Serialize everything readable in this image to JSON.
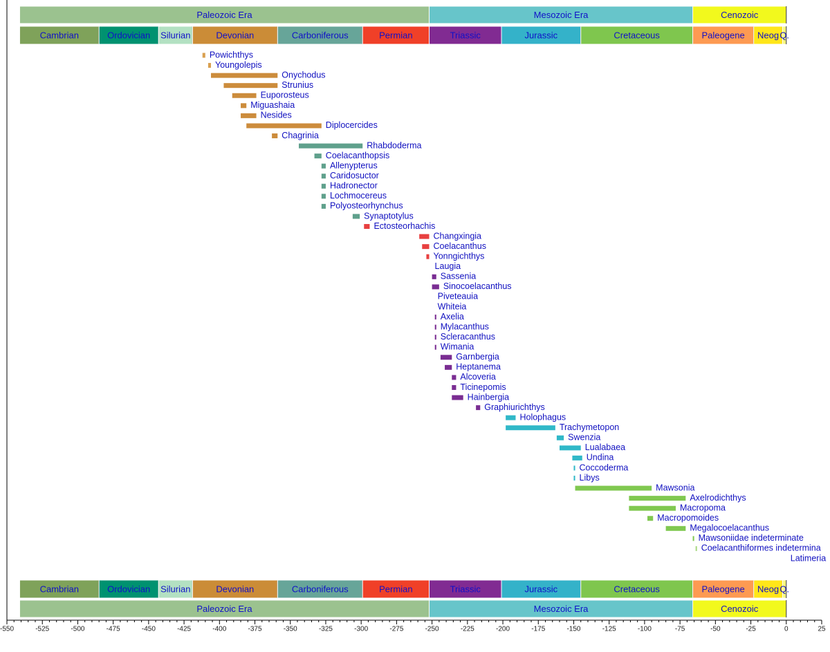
{
  "chart_data": {
    "type": "timeline",
    "xlim": [
      -550,
      25
    ],
    "xticks": [
      -550,
      -525,
      -500,
      -475,
      -450,
      -425,
      -400,
      -375,
      -350,
      -325,
      -300,
      -275,
      -250,
      -225,
      -200,
      -175,
      -150,
      -125,
      -100,
      -75,
      -50,
      -25,
      0,
      25
    ],
    "eras": [
      {
        "name": "Paleozoic Era",
        "start": -541,
        "end": -252,
        "color": "#9bc28f"
      },
      {
        "name": "Mesozoic Era",
        "start": -252,
        "end": -66,
        "color": "#67c5ca"
      },
      {
        "name": "Cenozoic",
        "start": -66,
        "end": 0,
        "color": "#f2f91d"
      }
    ],
    "periods": [
      {
        "name": "Cambrian",
        "start": -541,
        "end": -485,
        "color": "#7fa25a"
      },
      {
        "name": "Ordovician",
        "start": -485,
        "end": -443,
        "color": "#009270"
      },
      {
        "name": "Silurian",
        "start": -443,
        "end": -419,
        "color": "#b3e1c2"
      },
      {
        "name": "Devonian",
        "start": -419,
        "end": -359,
        "color": "#cb8c37"
      },
      {
        "name": "Carboniferous",
        "start": -359,
        "end": -299,
        "color": "#67a599"
      },
      {
        "name": "Permian",
        "start": -299,
        "end": -252,
        "color": "#f04028"
      },
      {
        "name": "Triassic",
        "start": -252,
        "end": -201,
        "color": "#812b92"
      },
      {
        "name": "Jurassic",
        "start": -201,
        "end": -145,
        "color": "#34b2c9"
      },
      {
        "name": "Cretaceous",
        "start": -145,
        "end": -66,
        "color": "#7fc64e"
      },
      {
        "name": "Paleogene",
        "start": -66,
        "end": -23,
        "color": "#fd9a52"
      },
      {
        "name": "Neog",
        "start": -23,
        "end": -2.6,
        "color": "#ffe619"
      },
      {
        "name": "Q.",
        "start": -2.6,
        "end": 0,
        "color": "#f9f97f"
      }
    ],
    "taxa": [
      {
        "name": "Powichthys",
        "start": -412,
        "end": -410,
        "color": "#d9a050"
      },
      {
        "name": "Youngolepis",
        "start": -408,
        "end": -406,
        "color": "#d9a050"
      },
      {
        "name": "Onychodus",
        "start": -406,
        "end": -359,
        "color": "#cc8c3c"
      },
      {
        "name": "Strunius",
        "start": -397,
        "end": -359,
        "color": "#cc8c3c"
      },
      {
        "name": "Euporosteus",
        "start": -391,
        "end": -374,
        "color": "#cc8c3c"
      },
      {
        "name": "Miguashaia",
        "start": -385,
        "end": -381,
        "color": "#cc8c3c"
      },
      {
        "name": "Nesides",
        "start": -385,
        "end": -374,
        "color": "#cc8c3c"
      },
      {
        "name": "Diplocercides",
        "start": -381,
        "end": -328,
        "color": "#cc8c3c"
      },
      {
        "name": "Chagrinia",
        "start": -363,
        "end": -359,
        "color": "#cc8c3c"
      },
      {
        "name": "Rhabdoderma",
        "start": -344,
        "end": -299,
        "color": "#5fa08c"
      },
      {
        "name": "Coelacanthopsis",
        "start": -333,
        "end": -328,
        "color": "#5fa08c"
      },
      {
        "name": "Allenypterus",
        "start": -328,
        "end": -325,
        "color": "#5fa08c"
      },
      {
        "name": "Caridosuctor",
        "start": -328,
        "end": -325,
        "color": "#5fa08c"
      },
      {
        "name": "Hadronector",
        "start": -328,
        "end": -325,
        "color": "#5fa08c"
      },
      {
        "name": "Lochmocereus",
        "start": -328,
        "end": -325,
        "color": "#5fa08c"
      },
      {
        "name": "Polyosteorhynchus",
        "start": -328,
        "end": -325,
        "color": "#5fa08c"
      },
      {
        "name": "Synaptotylus",
        "start": -306,
        "end": -301,
        "color": "#5fa08c"
      },
      {
        "name": "Ectosteorhachis",
        "start": -298,
        "end": -294,
        "color": "#e84040"
      },
      {
        "name": "Changxingia",
        "start": -259,
        "end": -252,
        "color": "#e84040"
      },
      {
        "name": "Coelacanthus",
        "start": -257,
        "end": -252,
        "color": "#e84040"
      },
      {
        "name": "Yonngichthys",
        "start": -254,
        "end": -252,
        "color": "#e84040"
      },
      {
        "name": "Laugia",
        "start": -251,
        "end": -251,
        "color": "#7a2d92"
      },
      {
        "name": "Sassenia",
        "start": -250,
        "end": -247,
        "color": "#7a2d92"
      },
      {
        "name": "Sinocoelacanthus",
        "start": -250,
        "end": -245,
        "color": "#7a2d92"
      },
      {
        "name": "Piveteauia",
        "start": -249,
        "end": -249,
        "color": "#7a2d92"
      },
      {
        "name": "Whiteia",
        "start": -249,
        "end": -249,
        "color": "#7a2d92"
      },
      {
        "name": "Axelia",
        "start": -248,
        "end": -247,
        "color": "#7a2d92"
      },
      {
        "name": "Mylacanthus",
        "start": -248,
        "end": -247,
        "color": "#7a2d92"
      },
      {
        "name": "Scleracanthus",
        "start": -248,
        "end": -247,
        "color": "#7a2d92"
      },
      {
        "name": "Wimania",
        "start": -248,
        "end": -247,
        "color": "#7a2d92"
      },
      {
        "name": "Garnbergia",
        "start": -244,
        "end": -236,
        "color": "#7a2d92"
      },
      {
        "name": "Heptanema",
        "start": -241,
        "end": -236,
        "color": "#7a2d92"
      },
      {
        "name": "Alcoveria",
        "start": -236,
        "end": -233,
        "color": "#7a2d92"
      },
      {
        "name": "Ticinepomis",
        "start": -236,
        "end": -233,
        "color": "#7a2d92"
      },
      {
        "name": "Hainbergia",
        "start": -236,
        "end": -228,
        "color": "#7a2d92"
      },
      {
        "name": "Graphiurichthys",
        "start": -219,
        "end": -216,
        "color": "#7a2d92"
      },
      {
        "name": "Holophagus",
        "start": -198,
        "end": -191,
        "color": "#30b8c8"
      },
      {
        "name": "Trachymetopon",
        "start": -198,
        "end": -163,
        "color": "#30b8c8"
      },
      {
        "name": "Swenzia",
        "start": -162,
        "end": -157,
        "color": "#30b8c8"
      },
      {
        "name": "Lualabaea",
        "start": -160,
        "end": -145,
        "color": "#30b8c8"
      },
      {
        "name": "Undina",
        "start": -151,
        "end": -144,
        "color": "#30b8c8"
      },
      {
        "name": "Coccoderma",
        "start": -150,
        "end": -149,
        "color": "#30b8c8"
      },
      {
        "name": "Libys",
        "start": -150,
        "end": -149,
        "color": "#30b8c8"
      },
      {
        "name": "Mawsonia",
        "start": -149,
        "end": -95,
        "color": "#80c850"
      },
      {
        "name": "Axelrodichthys",
        "start": -111,
        "end": -71,
        "color": "#80c850"
      },
      {
        "name": "Macropoma",
        "start": -111,
        "end": -78,
        "color": "#80c850"
      },
      {
        "name": "Macropomoides",
        "start": -98,
        "end": -94,
        "color": "#80c850"
      },
      {
        "name": "Megalocoelacanthus",
        "start": -85,
        "end": -71,
        "color": "#80c850"
      },
      {
        "name": "Mawsoniidae indeterminate",
        "start": -66,
        "end": -65,
        "color": "#80c850"
      },
      {
        "name": "Coelacanthiformes indetermina",
        "start": -64,
        "end": -63,
        "color": "#a8d880"
      },
      {
        "name": "Latimeria",
        "start": 0,
        "end": 0,
        "color": "#80c850"
      }
    ]
  }
}
